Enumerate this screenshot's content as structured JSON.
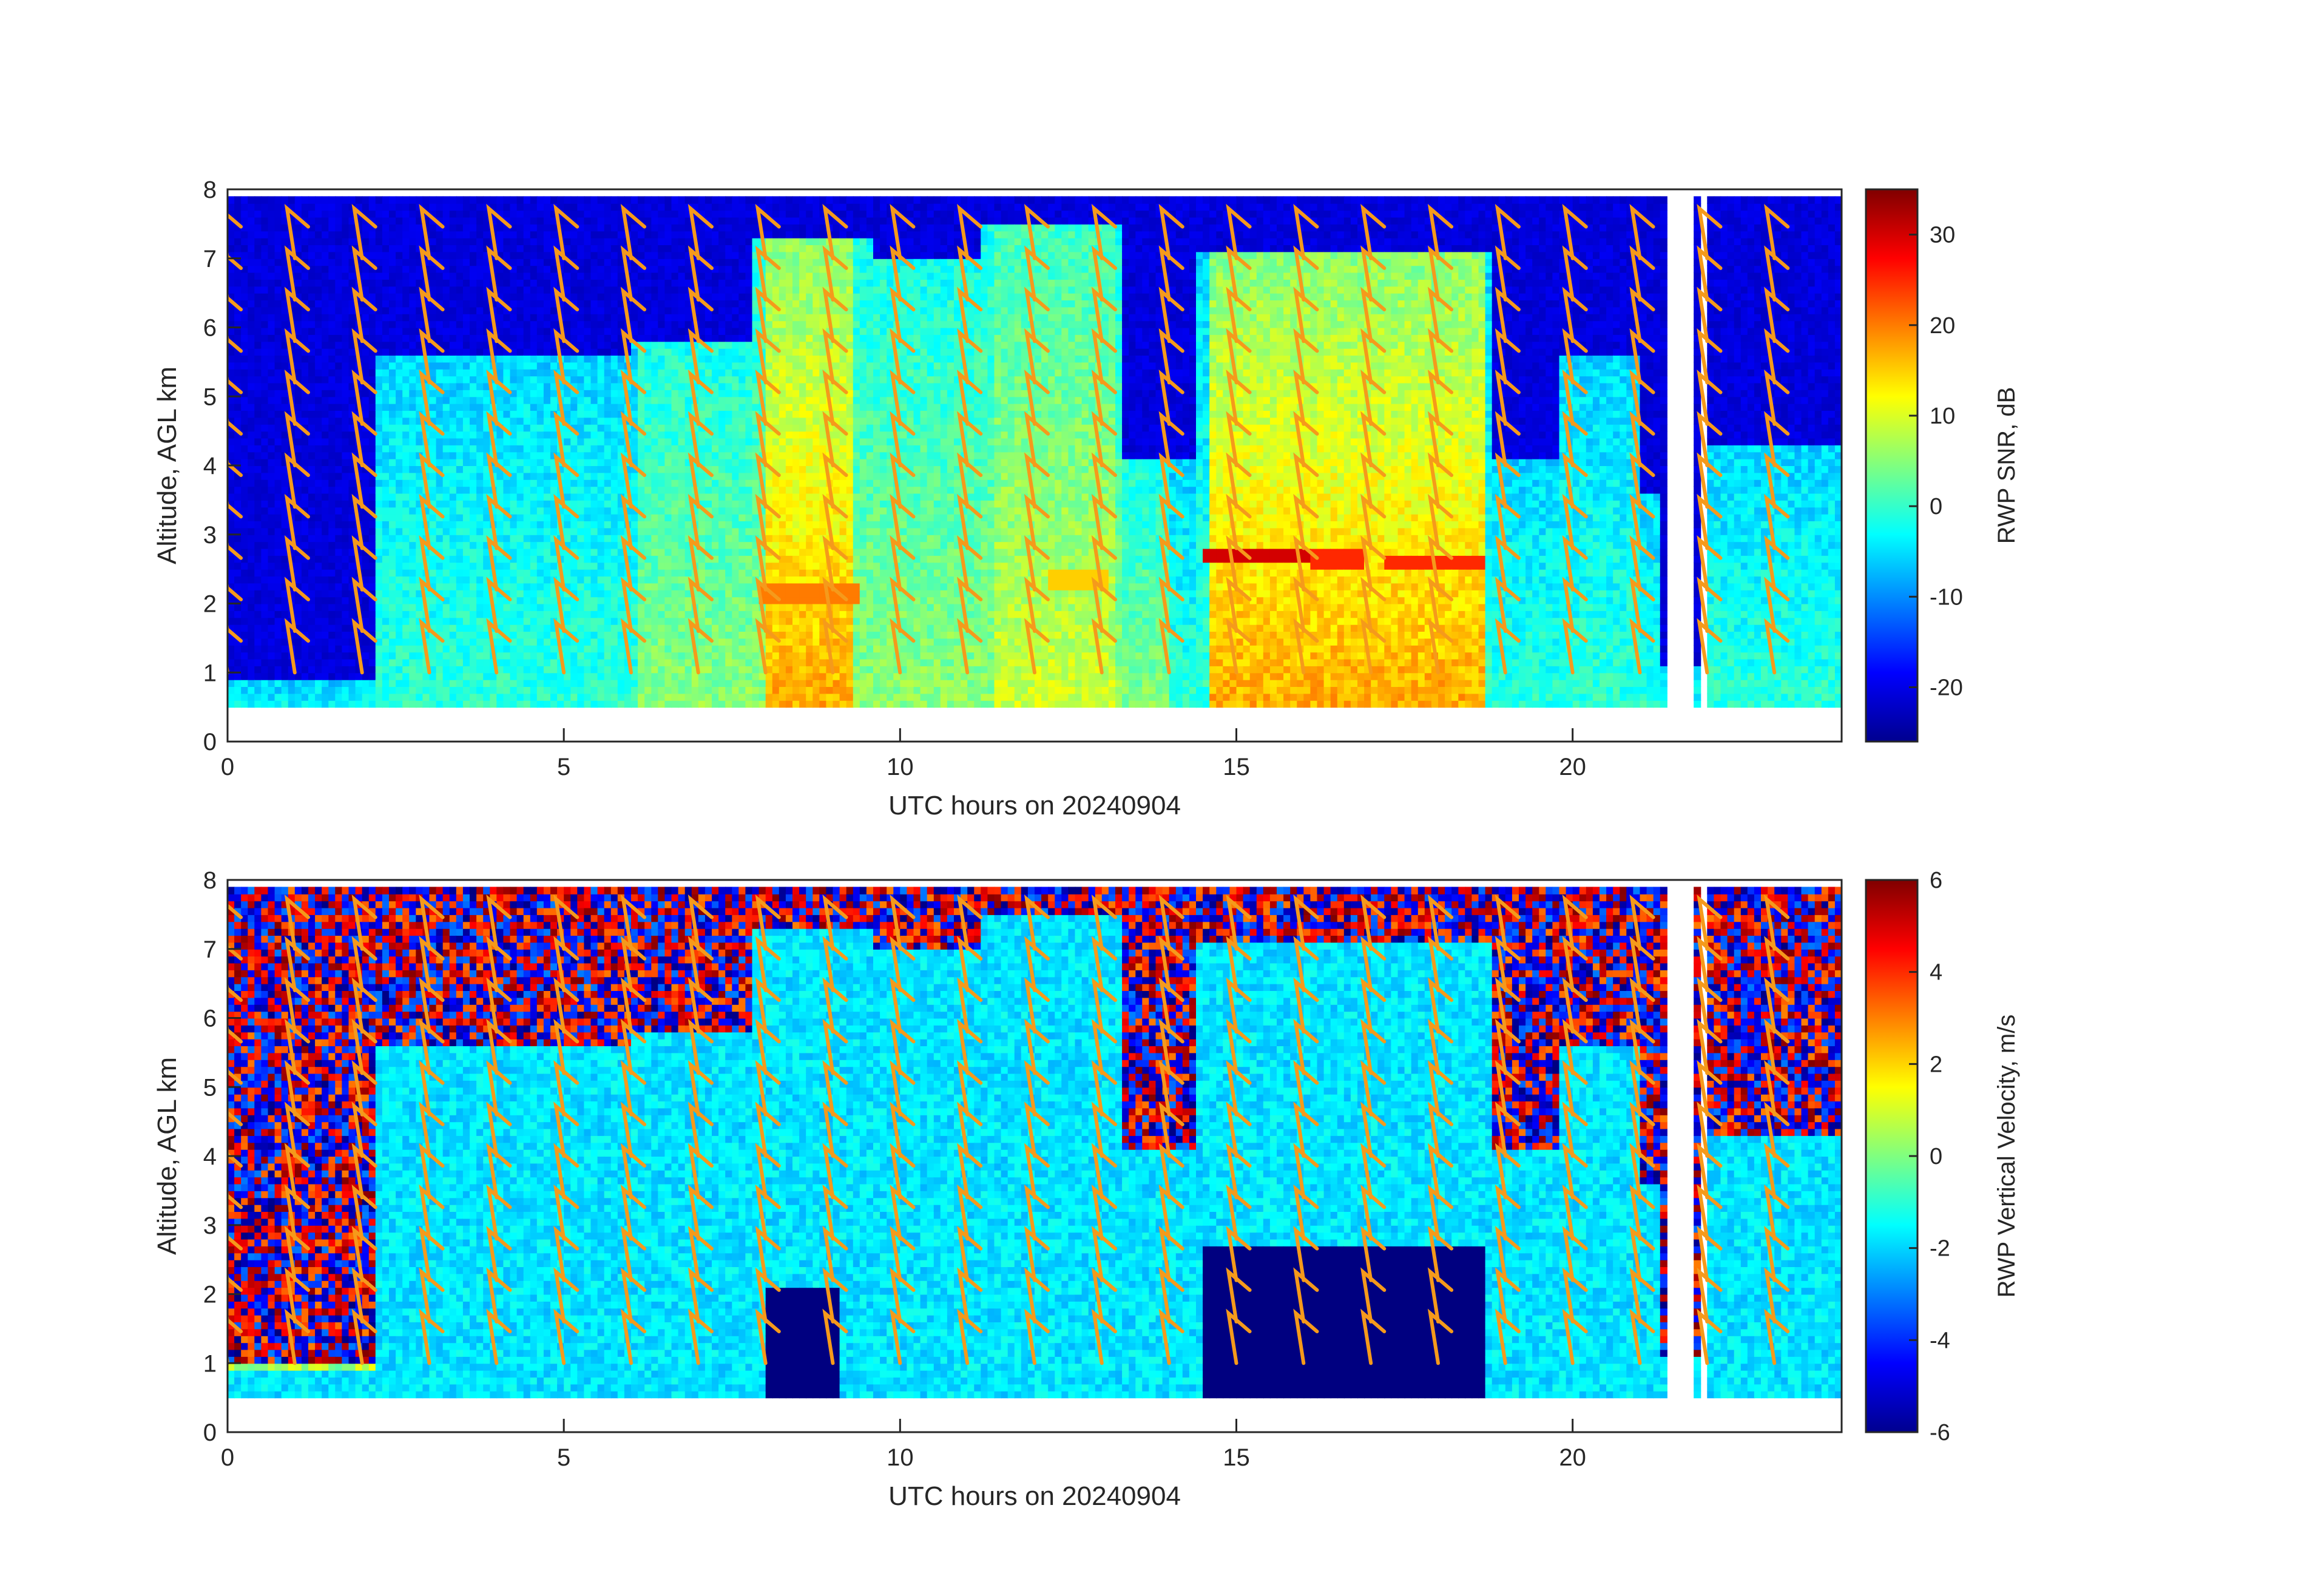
{
  "chart_data": [
    {
      "type": "heatmap",
      "title": "",
      "xlabel": "UTC hours on 20240904",
      "ylabel": "Altitude, AGL km",
      "xlim": [
        0,
        24
      ],
      "ylim": [
        0,
        8
      ],
      "x_ticks": [
        0,
        5,
        10,
        15,
        20
      ],
      "y_ticks": [
        0,
        1,
        2,
        3,
        4,
        5,
        6,
        7,
        8
      ],
      "colorbar": {
        "label": "RWP SNR, dB",
        "range": [
          -26,
          35
        ],
        "ticks": [
          30,
          20,
          10,
          0,
          -10,
          -20
        ],
        "colormap": "jet"
      },
      "overlay": "wind barbs (orange)",
      "features": {
        "data_altitude_range_km": [
          0.5,
          7.9
        ],
        "bright_band_layers": [
          {
            "x_range": [
              7.9,
              9.3
            ],
            "altitude_km": 2.1,
            "snr_db": 20
          },
          {
            "x_range": [
              12.2,
              13.1
            ],
            "altitude_km": 2.3,
            "snr_db": 15
          },
          {
            "x_range": [
              14.5,
              16.1
            ],
            "altitude_km": 2.65,
            "snr_db": 30
          },
          {
            "x_range": [
              16.1,
              16.9
            ],
            "altitude_km": 2.6,
            "snr_db": 25
          },
          {
            "x_range": [
              17.2,
              18.6
            ],
            "altitude_km": 2.55,
            "snr_db": 25
          }
        ]
      }
    },
    {
      "type": "heatmap",
      "title": "",
      "xlabel": "UTC hours on 20240904",
      "ylabel": "Altitude, AGL km",
      "xlim": [
        0,
        24
      ],
      "ylim": [
        0,
        8
      ],
      "x_ticks": [
        0,
        5,
        10,
        15,
        20
      ],
      "y_ticks": [
        0,
        1,
        2,
        3,
        4,
        5,
        6,
        7,
        8
      ],
      "colorbar": {
        "label": "RWP Vertical Velocity, m/s",
        "range": [
          -6,
          6
        ],
        "ticks": [
          6,
          4,
          2,
          0,
          -2,
          -4,
          -6
        ],
        "colormap": "jet"
      },
      "overlay": "wind barbs (orange)",
      "features": {
        "data_altitude_range_km": [
          0.5,
          7.9
        ],
        "strong_downdraft_regions": [
          {
            "x_range": [
              8.0,
              9.0
            ],
            "altitude_km": [
              0.5,
              2.0
            ],
            "velocity_ms": -6
          },
          {
            "x_range": [
              14.5,
              18.6
            ],
            "altitude_km": [
              0.5,
              2.6
            ],
            "velocity_ms": -6
          }
        ]
      }
    }
  ],
  "colors": {
    "barb": "#f59a1b",
    "background": "#ffffff",
    "axis": "#262626"
  }
}
